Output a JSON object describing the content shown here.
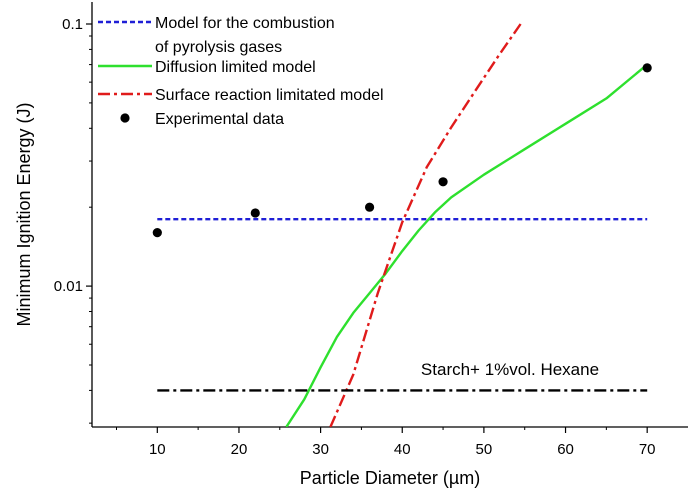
{
  "chart_data": {
    "type": "line",
    "xlabel": "Particle Diameter (µm)",
    "ylabel": "Minimum Ignition Energy (J)",
    "xlim": [
      2,
      75
    ],
    "ylim": [
      0.0029,
      0.1
    ],
    "yscale": "log",
    "xticks": [
      10,
      20,
      30,
      40,
      50,
      60,
      70
    ],
    "yticks": [
      0.01,
      0.1
    ],
    "ytick_labels": [
      "0.01",
      "0.1"
    ],
    "grid": false,
    "legend_position": "top-left",
    "annotation": "Starch+ 1%vol. Hexane",
    "series": [
      {
        "name": "Model for the combustion of pyrolysis gases",
        "legend_lines": [
          "Model for the combustion",
          "of pyrolysis gases"
        ],
        "style": "dashed",
        "color": "#1f1fd6",
        "x": [
          10,
          70
        ],
        "y": [
          0.018,
          0.018
        ]
      },
      {
        "name": "Diffusion limited model",
        "legend_lines": [
          "Diffusion limited model"
        ],
        "style": "solid",
        "color": "#2ee02e",
        "x": [
          25.8,
          28,
          30,
          32,
          34,
          36,
          38,
          40,
          42,
          44,
          46,
          50,
          55,
          60,
          65,
          70
        ],
        "y": [
          0.0029,
          0.0037,
          0.0049,
          0.0064,
          0.0079,
          0.0094,
          0.0112,
          0.0136,
          0.0163,
          0.0191,
          0.0218,
          0.0266,
          0.0333,
          0.0416,
          0.052,
          0.07
        ]
      },
      {
        "name": "Surface reaction limitated model",
        "legend_lines": [
          "Surface reaction limitated model"
        ],
        "style": "dashdot",
        "color": "#e01b1b",
        "x": [
          31.2,
          34,
          37,
          40,
          43,
          46,
          49,
          52,
          54.5
        ],
        "y": [
          0.0029,
          0.0046,
          0.0094,
          0.0175,
          0.0284,
          0.0403,
          0.0559,
          0.0773,
          0.1
        ]
      },
      {
        "name": "Experimental data",
        "legend_lines": [
          "Experimental data"
        ],
        "style": "markers",
        "color": "#000000",
        "x": [
          10,
          22,
          36,
          45,
          70
        ],
        "y": [
          0.016,
          0.019,
          0.02,
          0.025,
          0.068
        ]
      },
      {
        "style": "dashdot",
        "color": "#000000",
        "x": [
          10,
          70
        ],
        "y": [
          0.004,
          0.004
        ]
      }
    ]
  }
}
